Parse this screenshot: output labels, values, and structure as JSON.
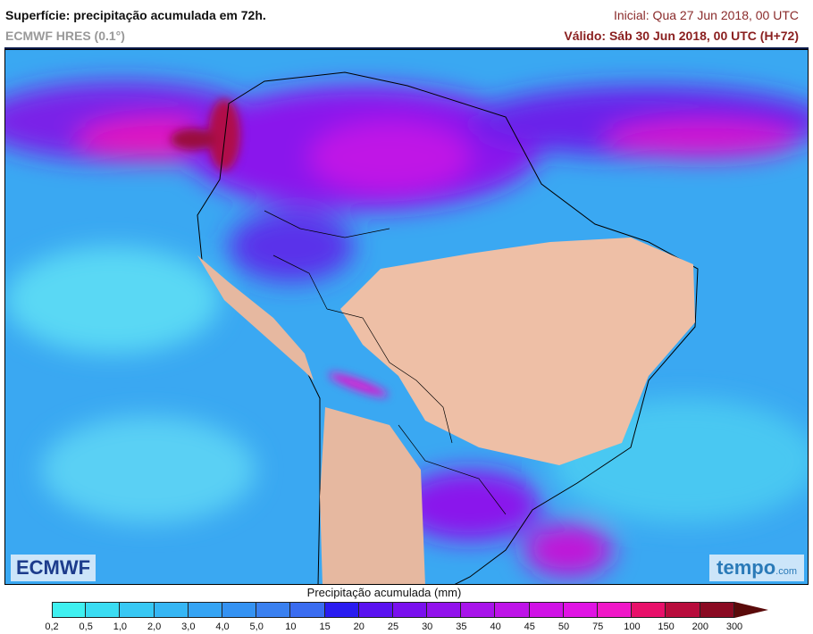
{
  "header": {
    "title": "Superfície: precipitação acumulada em 72h.",
    "model": "ECMWF HRES (0.1°)",
    "initial": "Inicial: Qua 27 Jun 2018, 00 UTC",
    "valid": "Válido: Sáb 30 Jun 2018, 00 UTC (H+72)"
  },
  "logos": {
    "left": "ECMWF",
    "right": "tempo",
    "right_suffix": ".com"
  },
  "legend": {
    "title": "Precipitação acumulada (mm)",
    "ticks": [
      "0,2",
      "0,5",
      "1,0",
      "2,0",
      "3,0",
      "4,0",
      "5,0",
      "10",
      "15",
      "20",
      "25",
      "30",
      "35",
      "40",
      "45",
      "50",
      "75",
      "100",
      "150",
      "200",
      "300"
    ],
    "colors": [
      "#3ff0f0",
      "#3adcf2",
      "#38c8f4",
      "#36b6f4",
      "#35a4f4",
      "#3492f2",
      "#3a80f0",
      "#3a6cf0",
      "#2a1cf0",
      "#5a12f0",
      "#7a10ee",
      "#9212ec",
      "#a814ea",
      "#be14e8",
      "#d012e6",
      "#e014e4",
      "#f018c8",
      "#e8106a",
      "#b80c3c",
      "#8a0a22"
    ],
    "overflow_color": "#5a0a0a"
  }
}
